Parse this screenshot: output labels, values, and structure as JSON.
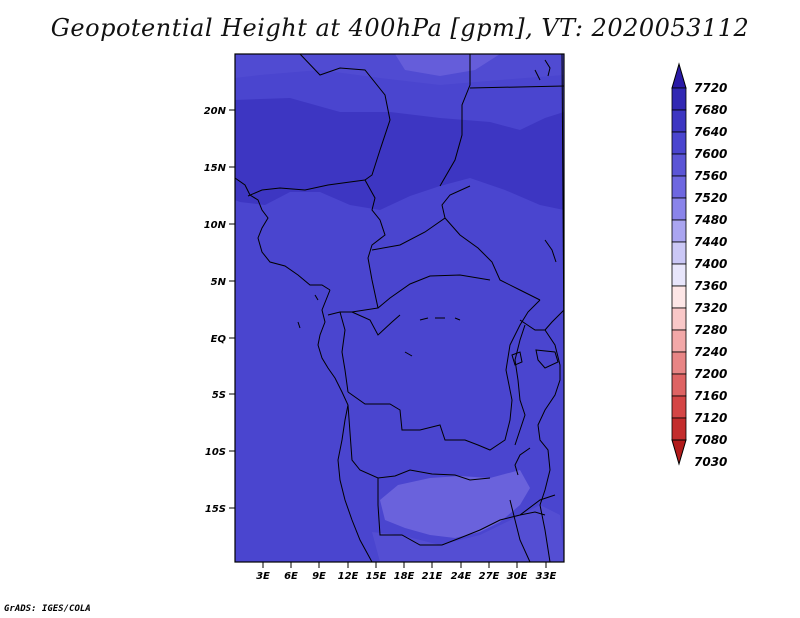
{
  "title": "Geopotential Height at 400hPa [gpm], VT: 2020053112",
  "footer": "GrADS: IGES/COLA",
  "colors": {
    "base": "#4a45cf",
    "dark": "#3d36c2",
    "light": "#6a62dc",
    "border": "#000000"
  },
  "map": {
    "lat_ticks": [
      "20N",
      "15N",
      "10N",
      "5N",
      "EQ",
      "5S",
      "10S",
      "15S"
    ],
    "lon_ticks": [
      "3E",
      "6E",
      "9E",
      "12E",
      "15E",
      "18E",
      "21E",
      "24E",
      "27E",
      "30E",
      "33E"
    ]
  },
  "colorbar": {
    "levels": [
      "7720",
      "7680",
      "7640",
      "7600",
      "7560",
      "7520",
      "7480",
      "7440",
      "7400",
      "7360",
      "7320",
      "7280",
      "7240",
      "7200",
      "7160",
      "7120",
      "7080",
      "7030"
    ],
    "colors": [
      "#2a1aa6",
      "#3128b3",
      "#3d36c2",
      "#4a45cf",
      "#5b55d6",
      "#6e67e0",
      "#8a84ea",
      "#aaa5f0",
      "#cbc8f6",
      "#e8e6fb",
      "#fde6e6",
      "#f9c8c8",
      "#f2a8a8",
      "#e88585",
      "#de6363",
      "#d44545",
      "#c32c2c",
      "#b21b1b"
    ]
  }
}
